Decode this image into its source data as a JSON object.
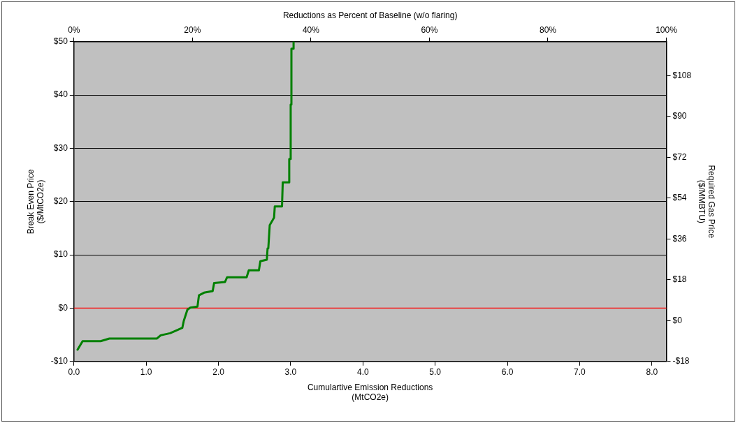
{
  "chart_data": {
    "type": "line",
    "x2label": "Reductions as Percent of Baseline (w/o flaring)",
    "xlabel": "Cumulartive Emission Reductions\n(MtCO2e)",
    "ylabel": "Break Even Price\n($/MtCO2e)",
    "y2label": "Required Gas Price\n($/MMBTU)",
    "series": [
      {
        "color": "#008000",
        "x": [
          0.05,
          0.12,
          0.37,
          0.49,
          1.15,
          1.2,
          1.33,
          1.43,
          1.5,
          1.52,
          1.57,
          1.61,
          1.71,
          1.73,
          1.8,
          1.92,
          1.94,
          2.09,
          2.12,
          2.39,
          2.42,
          2.56,
          2.58,
          2.67,
          2.68,
          2.69,
          2.71,
          2.77,
          2.78,
          2.88,
          2.89,
          2.98,
          2.98,
          3.0,
          3.0,
          3.01,
          3.01,
          3.04,
          3.04
        ],
        "values": [
          -7.8,
          -6.2,
          -6.2,
          -5.7,
          -5.7,
          -5.1,
          -4.7,
          -4.1,
          -3.7,
          -2.4,
          -0.3,
          0.1,
          0.3,
          2.4,
          2.9,
          3.2,
          4.7,
          4.9,
          5.8,
          5.8,
          7.1,
          7.1,
          8.8,
          9.1,
          11.2,
          11.2,
          15.6,
          17.0,
          19.1,
          19.1,
          23.6,
          23.6,
          28.0,
          28.0,
          38.2,
          38.2,
          48.7,
          48.7,
          50
        ]
      }
    ],
    "xlim": [
      0,
      8.2
    ],
    "xticks": [
      {
        "value": 0,
        "label": "0.0"
      },
      {
        "value": 1,
        "label": "1.0"
      },
      {
        "value": 2,
        "label": "2.0"
      },
      {
        "value": 3,
        "label": "3.0"
      },
      {
        "value": 4,
        "label": "4.0"
      },
      {
        "value": 5,
        "label": "5.0"
      },
      {
        "value": 6,
        "label": "6.0"
      },
      {
        "value": 7,
        "label": "7.0"
      },
      {
        "value": 8,
        "label": "8.0"
      }
    ],
    "x2lim": [
      0,
      100
    ],
    "x2ticks": [
      {
        "value": 0,
        "label": "0%"
      },
      {
        "value": 20,
        "label": "20%"
      },
      {
        "value": 40,
        "label": "40%"
      },
      {
        "value": 60,
        "label": "60%"
      },
      {
        "value": 80,
        "label": "80%"
      },
      {
        "value": 100,
        "label": "100%"
      }
    ],
    "ylim": [
      -10,
      50
    ],
    "yticks": [
      {
        "value": -10,
        "label": "-$10"
      },
      {
        "value": 0,
        "label": "$0"
      },
      {
        "value": 10,
        "label": "$10"
      },
      {
        "value": 20,
        "label": "$20"
      },
      {
        "value": 30,
        "label": "$30"
      },
      {
        "value": 40,
        "label": "$40"
      },
      {
        "value": 50,
        "label": "$50"
      }
    ],
    "y2lim": [
      -18,
      123
    ],
    "y2ticks": [
      {
        "value": -18,
        "label": "-$18"
      },
      {
        "value": 0,
        "label": "$0"
      },
      {
        "value": 18,
        "label": "$18"
      },
      {
        "value": 36,
        "label": "$36"
      },
      {
        "value": 54,
        "label": "$54"
      },
      {
        "value": 72,
        "label": "$72"
      },
      {
        "value": 90,
        "label": "$90"
      },
      {
        "value": 108,
        "label": "$108"
      }
    ],
    "ref_lines": [
      {
        "axis": "y",
        "value": 0,
        "color": "#ff0000"
      }
    ],
    "grid": "y",
    "legend": false,
    "marker": "none",
    "line_style": "solid"
  }
}
